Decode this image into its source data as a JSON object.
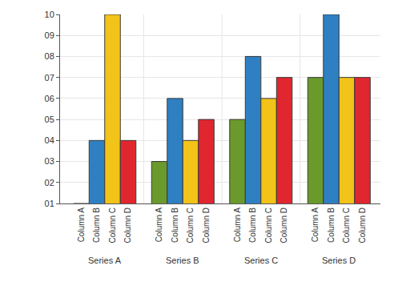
{
  "chart_data": {
    "type": "bar",
    "categories": [
      "Series A",
      "Series B",
      "Series C",
      "Series D"
    ],
    "series": [
      {
        "name": "Column A",
        "color": "#6b9a2c",
        "values": [
          1,
          3,
          5,
          7
        ]
      },
      {
        "name": "Column B",
        "color": "#2f80c2",
        "values": [
          4,
          6,
          8,
          10
        ]
      },
      {
        "name": "Column C",
        "color": "#f2c318",
        "values": [
          10,
          4,
          6,
          7
        ]
      },
      {
        "name": "Column D",
        "color": "#e0262f",
        "values": [
          4,
          5,
          7,
          7
        ]
      }
    ],
    "ylim": [
      1,
      10
    ],
    "yticks": [
      {
        "value": 1,
        "label": "01"
      },
      {
        "value": 2,
        "label": "02"
      },
      {
        "value": 3,
        "label": "03"
      },
      {
        "value": 4,
        "label": "04"
      },
      {
        "value": 5,
        "label": "05"
      },
      {
        "value": 6,
        "label": "06"
      },
      {
        "value": 7,
        "label": "07"
      },
      {
        "value": 8,
        "label": "08"
      },
      {
        "value": 9,
        "label": "09"
      },
      10
    ],
    "grid": true
  }
}
